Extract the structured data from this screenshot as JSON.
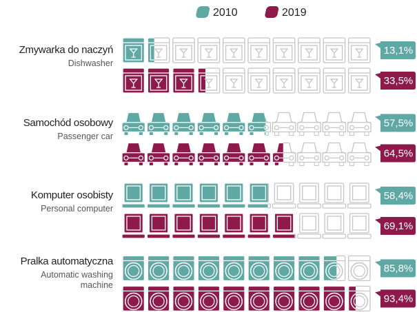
{
  "chart_data": {
    "type": "pictogram_bar",
    "categories": [
      "Zmywarka do naczyń",
      "Samochód osobowy",
      "Komputer osobisty",
      "Pralka automatyczna"
    ],
    "category_subtitles": [
      "Dishwasher",
      "Passenger car",
      "Personal computer",
      "Automatic washing machine"
    ],
    "series": [
      {
        "name": "2010",
        "color": "#5fa8a4",
        "values": [
          13.1,
          57.5,
          58.4,
          85.8
        ],
        "value_labels": [
          "13,1%",
          "57,5%",
          "58,4%",
          "85,8%"
        ]
      },
      {
        "name": "2019",
        "color": "#8e1a4c",
        "values": [
          33.5,
          64.5,
          69.1,
          93.4
        ],
        "value_labels": [
          "33,5%",
          "64,5%",
          "69,1%",
          "93,4%"
        ]
      }
    ],
    "xlim": [
      0,
      100
    ]
  }
}
